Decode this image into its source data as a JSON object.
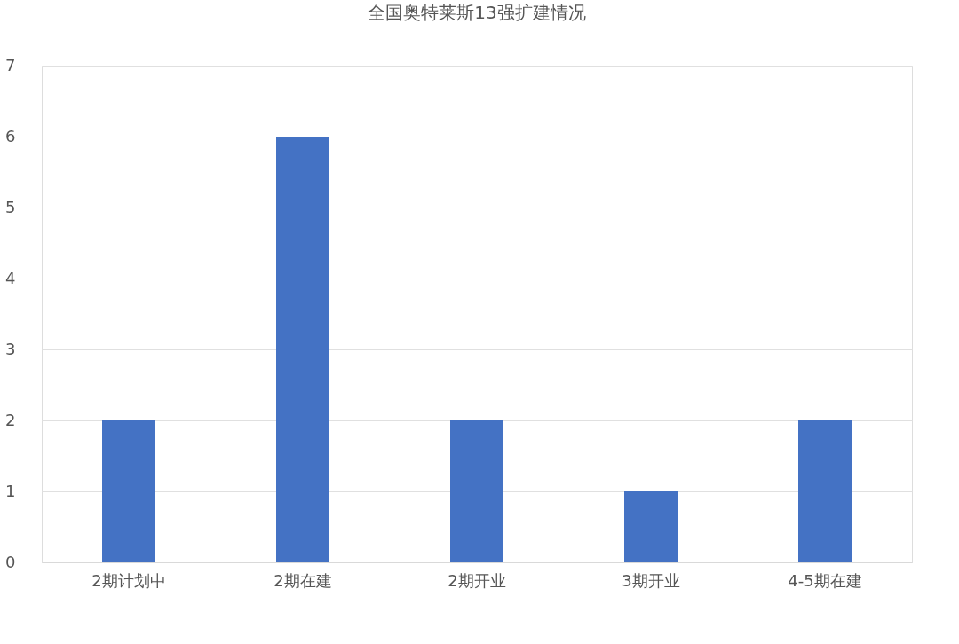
{
  "chart_data": {
    "type": "bar",
    "title": "全国奥特莱斯13强扩建情况",
    "categories": [
      "2期计划中",
      "2期在建",
      "2期开业",
      "3期开业",
      "4-5期在建"
    ],
    "values": [
      2,
      6,
      2,
      1,
      2
    ],
    "color": "#4472c4",
    "ylim": [
      0,
      7
    ],
    "yticks": [
      0,
      1,
      2,
      3,
      4,
      5,
      6,
      7
    ],
    "grid": "y"
  }
}
